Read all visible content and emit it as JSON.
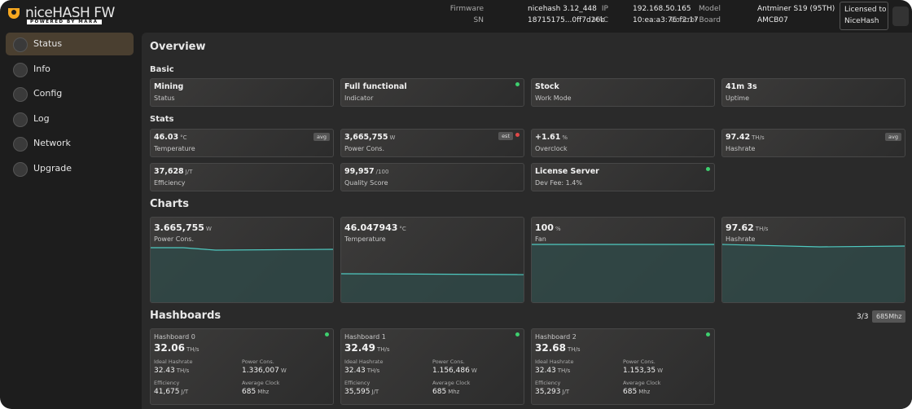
{
  "header": {
    "logo": "niceHASH FW",
    "logo_sub": "POWERED BY MARA",
    "info": [
      {
        "label": "Firmware",
        "value": "nicehash 3.12_448"
      },
      {
        "label": "IP",
        "value": "192.168.50.165"
      },
      {
        "label": "Model",
        "value": "Antminer S19 (95TH)"
      },
      {
        "label": "SN",
        "value": "18715175...0ff7d26b"
      },
      {
        "label": "MAC",
        "value": "10:ea:a3:76:f2:17"
      },
      {
        "label": "Control Board",
        "value": "AMCB07"
      }
    ],
    "license": [
      "Licensed to",
      "NiceHash"
    ]
  },
  "nav": [
    "Status",
    "Info",
    "Config",
    "Log",
    "Network",
    "Upgrade"
  ],
  "page_title": "Overview",
  "basic": {
    "title": "Basic",
    "cards": [
      {
        "value": "Mining",
        "label": "Status"
      },
      {
        "value": "Full functional",
        "label": "Indicator",
        "dot": "#3ecf6e"
      },
      {
        "value": "Stock",
        "label": "Work Mode"
      },
      {
        "value": "41m 3s",
        "label": "Uptime"
      }
    ]
  },
  "stats": {
    "title": "Stats",
    "cards": [
      {
        "value": "46.03",
        "unit": "°C",
        "label": "Temperature",
        "select": "avg"
      },
      {
        "value": "3,665,755",
        "unit": "W",
        "label": "Power Cons.",
        "badge": "est",
        "dot": "#e04848"
      },
      {
        "value": "+1.61",
        "unit": "%",
        "label": "Overclock"
      },
      {
        "value": "97.42",
        "unit": "TH/s",
        "label": "Hashrate",
        "select": "avg"
      },
      {
        "value": "37,628",
        "unit": "J/T",
        "label": "Efficiency"
      },
      {
        "value": "99,957",
        "unit": "/100",
        "label": "Quality Score"
      },
      {
        "value": "License Server",
        "label": "Dev Fee: 1.4%",
        "dot": "#3ecf6e"
      }
    ]
  },
  "charts": {
    "title": "Charts",
    "cards": [
      {
        "value": "3.665,755",
        "unit": "W",
        "label": "Power Cons."
      },
      {
        "value": "46.047943",
        "unit": "°C",
        "label": "Temperature"
      },
      {
        "value": "100",
        "unit": "%",
        "label": "Fan"
      },
      {
        "value": "97.62",
        "unit": "TH/s",
        "label": "Hashrate"
      }
    ]
  },
  "hashboards": {
    "title": "Hashboards",
    "count": "3/3",
    "freq": "685Mhz",
    "boards": [
      {
        "name": "Hashboard 0",
        "value": "32.06",
        "unit": "TH/s",
        "stats": [
          {
            "label": "Ideal Hashrate",
            "value": "32.43",
            "unit": "TH/s"
          },
          {
            "label": "Power Cons.",
            "value": "1.336,007",
            "unit": "W"
          },
          {
            "label": "Efficiency",
            "value": "41,675",
            "unit": "J/T"
          },
          {
            "label": "Average Clock",
            "value": "685",
            "unit": "Mhz"
          }
        ]
      },
      {
        "name": "Hashboard 1",
        "value": "32.49",
        "unit": "TH/s",
        "stats": [
          {
            "label": "Ideal Hashrate",
            "value": "32.43",
            "unit": "TH/s"
          },
          {
            "label": "Power Cons.",
            "value": "1.156,486",
            "unit": "W"
          },
          {
            "label": "Efficiency",
            "value": "35,595",
            "unit": "J/T"
          },
          {
            "label": "Average Clock",
            "value": "685",
            "unit": "Mhz"
          }
        ]
      },
      {
        "name": "Hashboard 2",
        "value": "32.68",
        "unit": "TH/s",
        "stats": [
          {
            "label": "Ideal Hashrate",
            "value": "32.43",
            "unit": "TH/s"
          },
          {
            "label": "Power Cons.",
            "value": "1.153,35",
            "unit": "W"
          },
          {
            "label": "Efficiency",
            "value": "35,293",
            "unit": "J/T"
          },
          {
            "label": "Average Clock",
            "value": "685",
            "unit": "Mhz"
          }
        ]
      }
    ]
  }
}
